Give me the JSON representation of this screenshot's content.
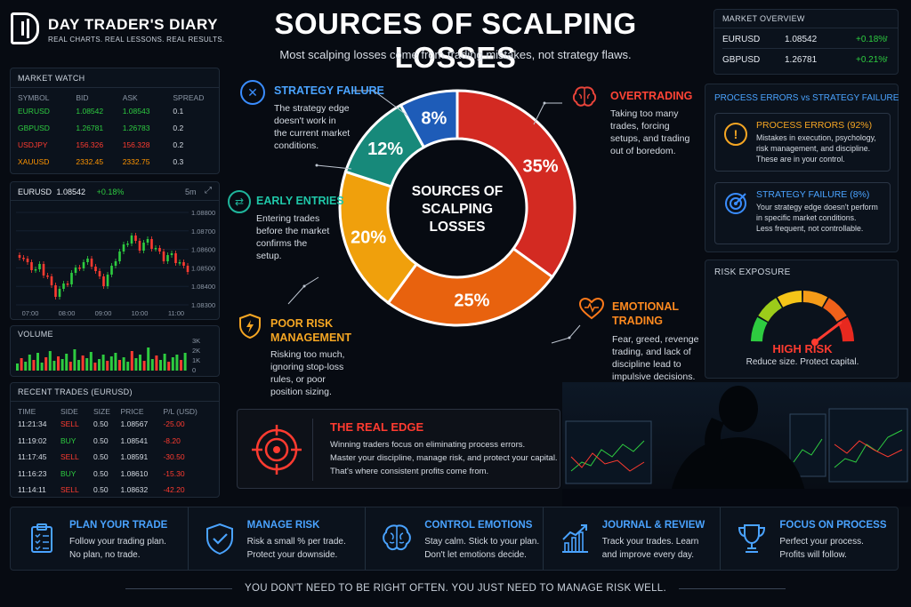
{
  "brand": {
    "logo_letter": "D",
    "name": "DAY TRADER'S DIARY",
    "tagline": "REAL CHARTS. REAL LESSONS. REAL RESULTS."
  },
  "header": {
    "title": "SOURCES OF SCALPING LOSSES",
    "subtitle": "Most scalping losses come from trading mistakes, not strategy flaws."
  },
  "market_watch": {
    "title": "MARKET WATCH",
    "columns": [
      "SYMBOL",
      "BID",
      "ASK",
      "SPREAD"
    ],
    "rows": [
      {
        "symbol": "EURUSD",
        "bid": "1.08542",
        "ask": "1.08543",
        "spread": "0.1",
        "color": "#2ecc40"
      },
      {
        "symbol": "GBPUSD",
        "bid": "1.26781",
        "ask": "1.26783",
        "spread": "0.2",
        "color": "#2ecc40"
      },
      {
        "symbol": "USDJPY",
        "bid": "156.326",
        "ask": "156.328",
        "spread": "0.2",
        "color": "#ff3b30"
      },
      {
        "symbol": "XAUUSD",
        "bid": "2332.45",
        "ask": "2332.75",
        "spread": "0.3",
        "color": "#ff9500"
      }
    ]
  },
  "price_chart": {
    "symbol": "EURUSD",
    "price": "1.08542",
    "change": "+0.18%",
    "timeframe": "5m",
    "y_ticks": [
      "1.08800",
      "1.08700",
      "1.08600",
      "1.08500",
      "1.08400",
      "1.08300"
    ],
    "x_ticks": [
      "07:00",
      "08:00",
      "09:00",
      "10:00",
      "11:00"
    ]
  },
  "volume": {
    "title": "VOLUME",
    "y_ticks": [
      "3K",
      "2K",
      "1K",
      "0"
    ]
  },
  "recent_trades": {
    "title": "RECENT TRADES (EURUSD)",
    "columns": [
      "TIME",
      "SIDE",
      "SIZE",
      "PRICE",
      "P/L (USD)"
    ],
    "rows": [
      {
        "time": "11:21:34",
        "side": "SELL",
        "size": "0.50",
        "price": "1.08567",
        "pl": "-25.00"
      },
      {
        "time": "11:19:02",
        "side": "BUY",
        "size": "0.50",
        "price": "1.08541",
        "pl": "-8.20"
      },
      {
        "time": "11:17:45",
        "side": "SELL",
        "size": "0.50",
        "price": "1.08591",
        "pl": "-30.50"
      },
      {
        "time": "11:16:23",
        "side": "BUY",
        "size": "0.50",
        "price": "1.08610",
        "pl": "-15.30"
      },
      {
        "time": "11:14:11",
        "side": "SELL",
        "size": "0.50",
        "price": "1.08632",
        "pl": "-42.20"
      }
    ]
  },
  "market_overview": {
    "title": "MARKET OVERVIEW",
    "rows": [
      {
        "symbol": "EURUSD",
        "price": "1.08542",
        "change": "+0.18%"
      },
      {
        "symbol": "GBPUSD",
        "price": "1.26781",
        "change": "+0.21%"
      }
    ]
  },
  "chart_data": {
    "type": "pie",
    "title": "SOURCES OF SCALPING LOSSES",
    "center_label_lines": [
      "SOURCES OF",
      "SCALPING",
      "LOSSES"
    ],
    "categories": [
      "Overtrading",
      "Emotional Trading",
      "Poor Risk Management",
      "Early Entries",
      "Strategy Failure"
    ],
    "values": [
      35,
      25,
      20,
      12,
      8
    ],
    "labels": [
      "35%",
      "25%",
      "20%",
      "12%",
      "8%"
    ],
    "colors": [
      "#d32a22",
      "#e8620e",
      "#f0a00c",
      "#17897a",
      "#1e5cb8"
    ],
    "legend": "none"
  },
  "segments": {
    "strategy": {
      "title": "STRATEGY FAILURE",
      "lines": [
        "The strategy edge",
        "doesn't work in",
        "the current market",
        "conditions."
      ]
    },
    "early": {
      "title": "EARLY ENTRIES",
      "lines": [
        "Entering trades",
        "before the market",
        "confirms the",
        "setup."
      ]
    },
    "poor": {
      "title_lines": [
        "POOR RISK",
        "MANAGEMENT"
      ],
      "lines": [
        "Risking too much,",
        "ignoring stop-loss",
        "rules, or poor",
        "position sizing."
      ]
    },
    "over": {
      "title": "OVERTRADING",
      "lines": [
        "Taking too many",
        "trades, forcing",
        "setups, and trading",
        "out of boredom."
      ]
    },
    "emotional": {
      "title_lines": [
        "EMOTIONAL",
        "TRADING"
      ],
      "lines": [
        "Fear, greed, revenge",
        "trading, and lack of",
        "discipline lead to",
        "impulsive decisions."
      ]
    }
  },
  "process_box": {
    "title": "PROCESS ERRORS vs STRATEGY FAILURE",
    "process": {
      "heading": "PROCESS ERRORS (92%)",
      "lines": [
        "Mistakes in execution, psychology,",
        "risk management, and discipline.",
        "These are in your control."
      ]
    },
    "strategy": {
      "heading": "STRATEGY FAILURE (8%)",
      "lines": [
        "Your strategy edge doesn't perform",
        "in specific market conditions.",
        "Less frequent, not controllable."
      ]
    }
  },
  "risk": {
    "title": "RISK EXPOSURE",
    "level": "HIGH RISK",
    "sub": "Reduce size. Protect capital.",
    "gauge_fraction": 0.85
  },
  "real_edge": {
    "title": "THE REAL EDGE",
    "lines": [
      "Winning traders focus on eliminating process errors.",
      "Master your discipline, manage risk, and protect your capital.",
      "That's where consistent profits come from."
    ]
  },
  "tips": [
    {
      "title": "PLAN YOUR TRADE",
      "lines": [
        "Follow your trading plan.",
        "No plan, no trade."
      ],
      "icon": "clipboard-icon"
    },
    {
      "title": "MANAGE RISK",
      "lines": [
        "Risk a small % per trade.",
        "Protect your downside."
      ],
      "icon": "shield-check-icon"
    },
    {
      "title": "CONTROL EMOTIONS",
      "lines": [
        "Stay calm. Stick to your plan.",
        "Don't let emotions decide."
      ],
      "icon": "brain-icon"
    },
    {
      "title": "JOURNAL & REVIEW",
      "lines": [
        "Track your trades. Learn",
        "and improve every day."
      ],
      "icon": "chart-up-icon"
    },
    {
      "title": "FOCUS ON PROCESS",
      "lines": [
        "Perfect your process.",
        "Profits will follow."
      ],
      "icon": "trophy-icon"
    }
  ],
  "footer": {
    "quote": "YOU DON'T NEED TO BE RIGHT OFTEN. YOU JUST NEED TO MANAGE RISK WELL."
  }
}
